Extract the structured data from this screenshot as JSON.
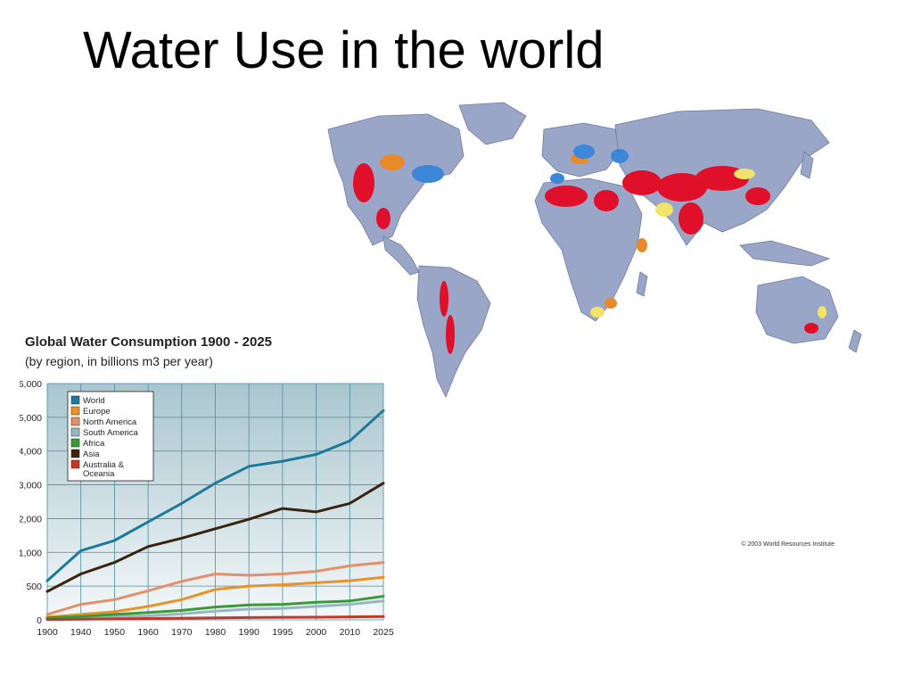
{
  "slide": {
    "title": "Water Use in the world"
  },
  "map": {
    "credit": "© 2003 World Resources Institute"
  },
  "colors": {
    "land": "#9aa6c8",
    "stress_high": "#e0102b",
    "stress_med": "#e88a2a",
    "stress_low": "#3b88d8",
    "stress_mild": "#f2e36a",
    "plot_bg_top": "#a9c6cf",
    "plot_bg_bottom": "#f4f8f9",
    "grid": "#4c8da0"
  },
  "chart_data": {
    "type": "line",
    "title": "Global Water Consumption 1900 - 2025",
    "subtitle": "(by region, in billions m3 per year)",
    "xlabel": "",
    "ylabel": "",
    "x": [
      "1900",
      "1940",
      "1950",
      "1960",
      "1970",
      "1980",
      "1990",
      "1995",
      "2000",
      "2010",
      "2025"
    ],
    "y_ticks": [
      "0",
      "500",
      "1,000",
      "2,000",
      "3,000",
      "4,000",
      "5,000",
      "6,000"
    ],
    "y_tick_values": [
      0,
      500,
      1000,
      2000,
      3000,
      4000,
      5000,
      6000
    ],
    "grid": true,
    "legend_position": "top-left",
    "series": [
      {
        "name": "World",
        "color": "#1f7a99",
        "values": [
          580,
          1050,
          1350,
          1900,
          2450,
          3050,
          3550,
          3700,
          3900,
          4300,
          5200
        ]
      },
      {
        "name": "Europe",
        "color": "#e8922a",
        "values": [
          40,
          80,
          120,
          200,
          300,
          450,
          500,
          520,
          550,
          580,
          630
        ]
      },
      {
        "name": "North America",
        "color": "#e3906a",
        "values": [
          80,
          230,
          300,
          430,
          570,
          680,
          660,
          680,
          720,
          800,
          850
        ]
      },
      {
        "name": "South America",
        "color": "#9ab6c5",
        "values": [
          15,
          30,
          50,
          60,
          90,
          130,
          160,
          170,
          200,
          230,
          280
        ]
      },
      {
        "name": "Africa",
        "color": "#3a9a3a",
        "values": [
          30,
          50,
          80,
          110,
          140,
          190,
          220,
          230,
          260,
          280,
          350
        ]
      },
      {
        "name": "Asia",
        "color": "#3a2410",
        "values": [
          420,
          680,
          850,
          1170,
          1420,
          1700,
          1980,
          2300,
          2200,
          2450,
          3050
        ]
      },
      {
        "name": "Australia & Oceania",
        "color": "#c0392b",
        "values": [
          5,
          10,
          15,
          20,
          25,
          30,
          35,
          38,
          40,
          45,
          50
        ]
      }
    ]
  }
}
